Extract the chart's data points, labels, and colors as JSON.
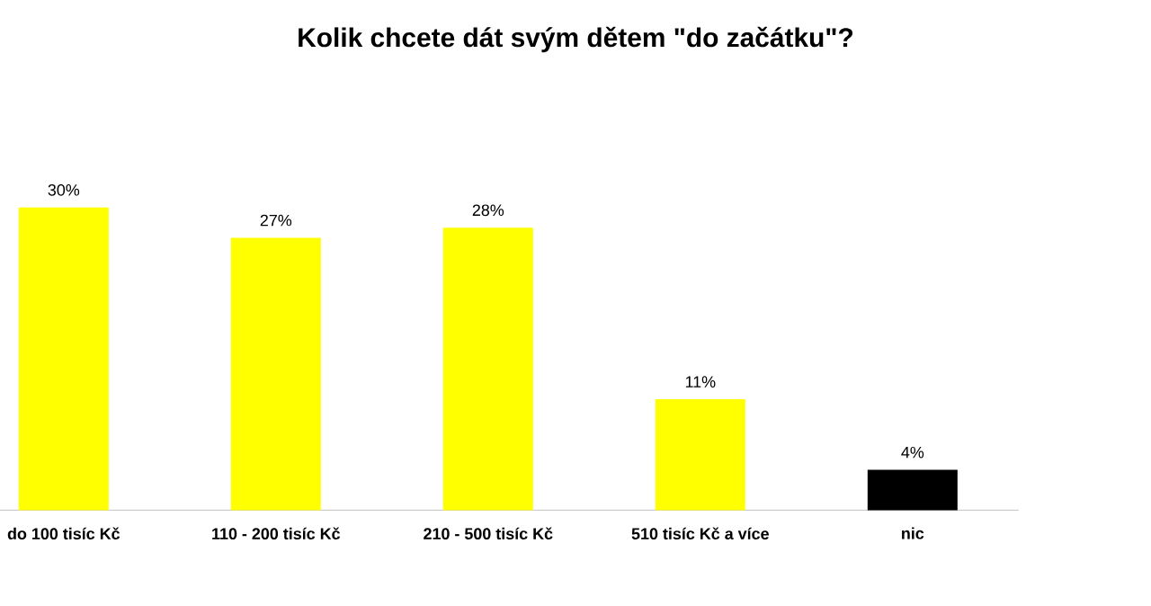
{
  "chart_data": {
    "type": "bar",
    "title": "Kolik chcete dát svým dětem \"do začátku\"?",
    "categories": [
      "do 100 tisíc Kč",
      "110 - 200 tisíc Kč",
      "210 - 500 tisíc Kč",
      "510 tisíc Kč a více",
      "nic"
    ],
    "values": [
      30,
      27,
      28,
      11,
      4
    ],
    "colors": [
      "#ffff00",
      "#ffff00",
      "#ffff00",
      "#ffff00",
      "#000000"
    ],
    "value_labels": [
      "30%",
      "27%",
      "28%",
      "11%",
      "4%"
    ]
  }
}
